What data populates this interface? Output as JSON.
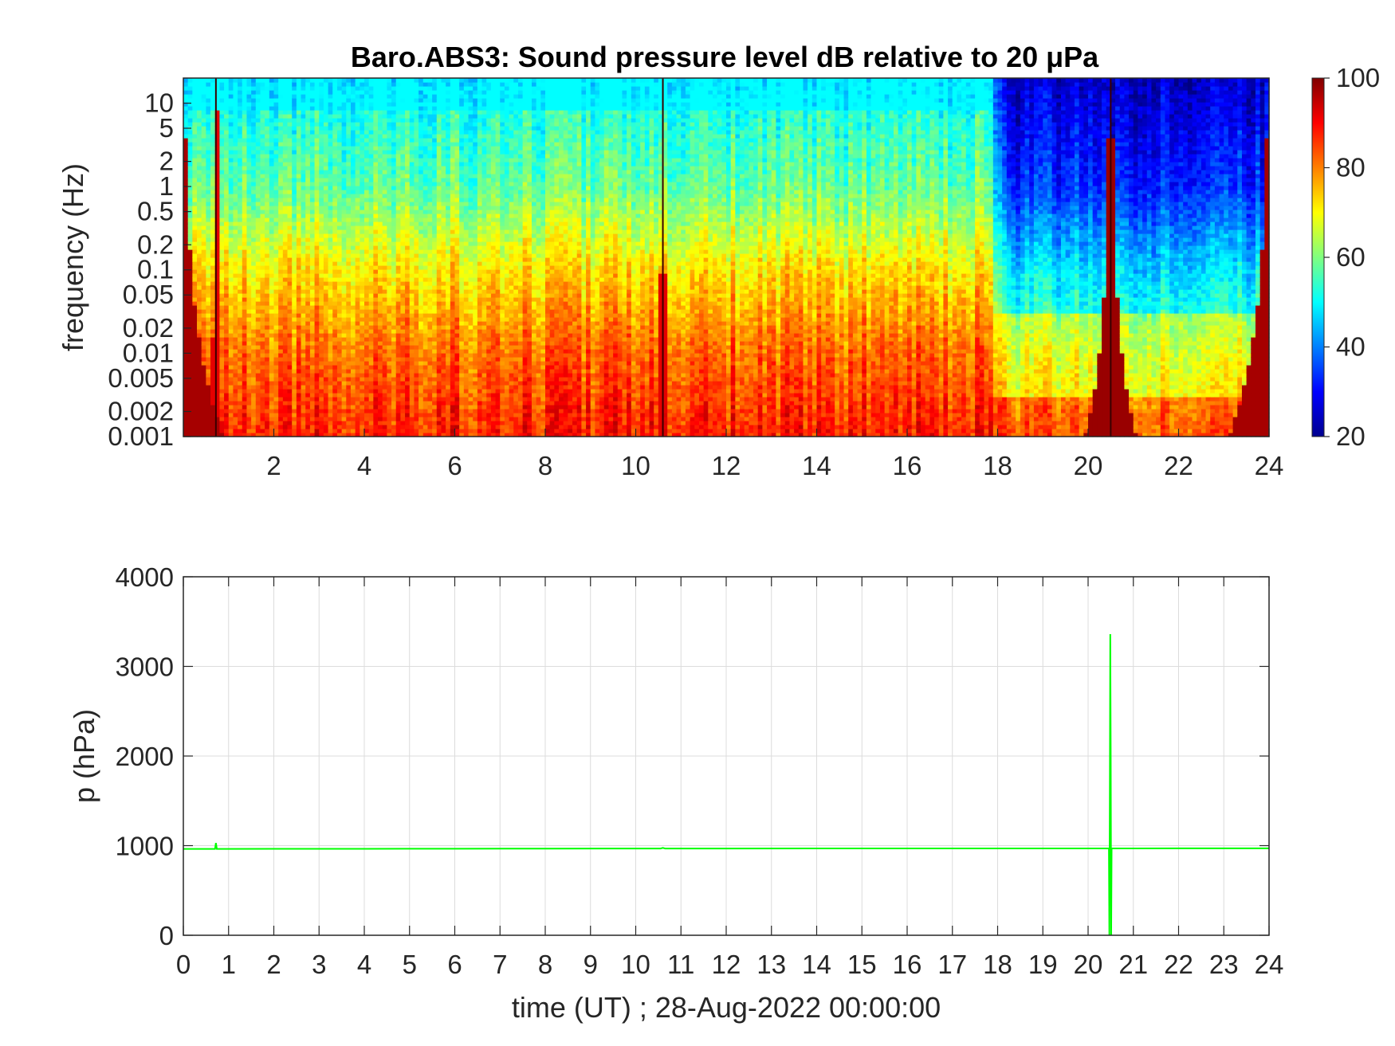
{
  "chart_data": [
    {
      "type": "heatmap",
      "title": "Baro.ABS3: Sound pressure level dB relative to 20 μPa",
      "xlabel": "",
      "ylabel": "frequency (Hz)",
      "xlim": [
        0,
        24
      ],
      "x_ticks": [
        2,
        4,
        6,
        8,
        10,
        12,
        14,
        16,
        18,
        20,
        22,
        24
      ],
      "y_scale": "log",
      "ylim": [
        0.001,
        20
      ],
      "y_ticks": [
        0.001,
        0.002,
        0.005,
        0.01,
        0.02,
        0.05,
        0.1,
        0.2,
        0.5,
        1,
        2,
        5,
        10
      ],
      "y_tick_labels": [
        "0.001",
        "0.002",
        "0.005",
        "0.01",
        "0.02",
        "0.05",
        "0.1",
        "0.2",
        "0.5",
        "1",
        "2",
        "5",
        "10"
      ],
      "colormap": "jet",
      "clim": [
        20,
        100
      ],
      "colorbar_ticks": [
        20,
        40,
        60,
        80,
        100
      ],
      "colorbar_tick_labels": [
        "20",
        "40",
        "60",
        "80",
        "100"
      ],
      "impulse_times": [
        0.72,
        10.6,
        20.5
      ],
      "quiet_interval": [
        17.8,
        24
      ],
      "typical_levels_db": {
        "f_0.001": 88,
        "f_0.01": 82,
        "f_0.1": 72,
        "f_1": 58,
        "f_10": 50
      }
    },
    {
      "type": "line",
      "title": "",
      "xlabel": "time (UT) ; 28-Aug-2022 00:00:00",
      "ylabel": "p (hPa)",
      "xlim": [
        0,
        24
      ],
      "ylim": [
        0,
        4000
      ],
      "x_ticks": [
        0,
        1,
        2,
        3,
        4,
        5,
        6,
        7,
        8,
        9,
        10,
        11,
        12,
        13,
        14,
        15,
        16,
        17,
        18,
        19,
        20,
        21,
        22,
        23,
        24
      ],
      "x_tick_labels": [
        "0",
        "1",
        "2",
        "3",
        "4",
        "5",
        "6",
        "7",
        "8",
        "9",
        "10",
        "11",
        "12",
        "13",
        "14",
        "15",
        "16",
        "17",
        "18",
        "19",
        "20",
        "21",
        "22",
        "23",
        "24"
      ],
      "y_ticks": [
        0,
        1000,
        2000,
        3000,
        4000
      ],
      "y_tick_labels": [
        "0",
        "1000",
        "2000",
        "3000",
        "4000"
      ],
      "grid": true,
      "line_color": "#00ff00",
      "series": [
        {
          "x": [
            0,
            0.7,
            0.72,
            0.74,
            2,
            4,
            6,
            8,
            10,
            10.55,
            10.6,
            10.65,
            12,
            14,
            16,
            18,
            20,
            20.46,
            20.47,
            20.48,
            20.49,
            20.5,
            20.51,
            20.52,
            21,
            22,
            23,
            24
          ],
          "y": [
            963,
            963,
            1030,
            963,
            964,
            965,
            966,
            967,
            968,
            968,
            975,
            968,
            968,
            969,
            969,
            969,
            969,
            969,
            0,
            1500,
            3360,
            2000,
            0,
            969,
            969,
            970,
            970,
            970
          ]
        }
      ]
    }
  ]
}
